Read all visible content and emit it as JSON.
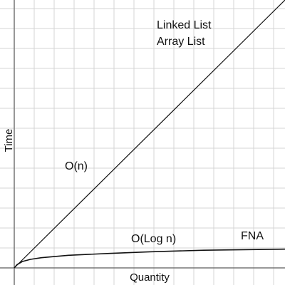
{
  "chart_data": {
    "type": "line",
    "title": "",
    "xlabel": "Quantity",
    "ylabel": "Time",
    "grid": true,
    "series": [
      {
        "name": "O(n)",
        "x": [
          0,
          1
        ],
        "y": [
          0,
          1
        ]
      },
      {
        "name": "O(Log n)",
        "x": [
          0,
          0.01,
          0.03,
          0.06,
          0.1,
          0.2,
          0.35,
          0.5,
          0.7,
          0.85,
          1
        ],
        "y": [
          0,
          0.012,
          0.024,
          0.032,
          0.038,
          0.047,
          0.054,
          0.06,
          0.066,
          0.068,
          0.07
        ]
      }
    ],
    "annotations": {
      "linked_list": "Linked List",
      "array_list": "Array List",
      "o_n": "O(n)",
      "o_log_n": "O(Log n)",
      "fna": "FNA"
    },
    "colors": {
      "line": "#111111",
      "grid": "#d4d4d4",
      "axis": "#777777"
    }
  }
}
